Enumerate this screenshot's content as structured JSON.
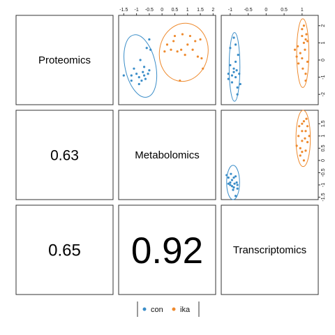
{
  "chart_data": {
    "type": "scatter",
    "variables": [
      "Proteomics",
      "Metabolomics",
      "Transcriptomics"
    ],
    "correlations": [
      {
        "row": 1,
        "col": 0,
        "value": "0.63"
      },
      {
        "row": 2,
        "col": 0,
        "value": "0.65"
      },
      {
        "row": 2,
        "col": 1,
        "value": "0.92"
      }
    ],
    "groups": [
      {
        "name": "con",
        "color": "#3A8DC8"
      },
      {
        "name": "ika",
        "color": "#EE8A2E"
      }
    ],
    "axes": {
      "Proteomics": {
        "range": [
          -2.6,
          2.6
        ],
        "ticks": [
          -2,
          -1,
          0,
          1,
          2
        ]
      },
      "Metabolomics": {
        "range": [
          -1.7,
          2.1
        ],
        "ticks": [
          -1.5,
          -1,
          -0.5,
          0,
          0.5,
          1,
          1.5,
          2
        ]
      },
      "Transcriptomics": {
        "range": [
          -1.25,
          1.45
        ],
        "ticks": [
          -1,
          -0.5,
          0,
          0.5,
          1
        ]
      },
      "Metabolomics_right": {
        "range": [
          -1.6,
          2.05
        ],
        "ticks": [
          -1.5,
          -1,
          -0.5,
          0,
          0.5,
          1,
          1.5
        ]
      }
    },
    "panels": [
      {
        "row": 0,
        "col": 1,
        "x": "Metabolomics",
        "y": "Proteomics",
        "series": [
          {
            "group": "con",
            "points": [
              [
                -1.5,
                -0.9
              ],
              [
                -1.2,
                -1.2
              ],
              [
                -1.2,
                -0.9
              ],
              [
                -1.1,
                -0.5
              ],
              [
                -1.0,
                -0.8
              ],
              [
                -0.9,
                -1.4
              ],
              [
                -0.9,
                -1.0
              ],
              [
                -0.85,
                0.0
              ],
              [
                -0.8,
                -1.2
              ],
              [
                -0.75,
                -0.7
              ],
              [
                -0.7,
                -0.9
              ],
              [
                -0.7,
                -0.4
              ],
              [
                -0.65,
                -1.1
              ],
              [
                -0.6,
                0.7
              ],
              [
                -0.55,
                -0.8
              ],
              [
                -0.5,
                1.2
              ],
              [
                -0.45,
                0.6
              ],
              [
                -0.5,
                -0.6
              ]
            ]
          },
          {
            "group": "ika",
            "points": [
              [
                0.1,
                0.5
              ],
              [
                0.2,
                0.9
              ],
              [
                0.35,
                0.6
              ],
              [
                0.45,
                1.1
              ],
              [
                0.5,
                1.4
              ],
              [
                0.6,
                0.5
              ],
              [
                0.7,
                -1.2
              ],
              [
                0.75,
                0.6
              ],
              [
                0.8,
                1.5
              ],
              [
                0.9,
                0.3
              ],
              [
                1.0,
                0.9
              ],
              [
                1.1,
                1.4
              ],
              [
                1.2,
                0.6
              ],
              [
                1.3,
                1.1
              ],
              [
                1.4,
                0.2
              ],
              [
                1.5,
                1.2
              ],
              [
                1.6,
                -0.5
              ],
              [
                1.55,
                0.1
              ]
            ]
          }
        ],
        "ellipses": [
          {
            "group": "con",
            "cx": -0.85,
            "cy": -0.35,
            "rx": 0.6,
            "ry": 1.85,
            "angle": -12
          },
          {
            "group": "ika",
            "cx": 0.85,
            "cy": 0.45,
            "rx": 0.95,
            "ry": 1.7,
            "angle": 10
          }
        ]
      },
      {
        "row": 0,
        "col": 2,
        "x": "Transcriptomics",
        "y": "Proteomics",
        "series": [
          {
            "group": "con",
            "points": [
              [
                -1.05,
                -1.1
              ],
              [
                -1.05,
                -0.8
              ],
              [
                -1.0,
                -0.3
              ],
              [
                -1.0,
                0.7
              ],
              [
                -0.95,
                -0.9
              ],
              [
                -0.95,
                -1.3
              ],
              [
                -0.9,
                -0.5
              ],
              [
                -0.9,
                -0.7
              ],
              [
                -0.85,
                0.9
              ],
              [
                -0.85,
                -0.1
              ],
              [
                -0.85,
                -1.0
              ],
              [
                -0.82,
                -0.6
              ],
              [
                -0.8,
                -2.0
              ],
              [
                -0.8,
                -1.6
              ],
              [
                -0.78,
                0.3
              ],
              [
                -0.75,
                -0.8
              ],
              [
                -0.72,
                -1.4
              ],
              [
                -0.9,
                1.3
              ]
            ]
          },
          {
            "group": "ika",
            "points": [
              [
                0.8,
                0.6
              ],
              [
                0.85,
                0.2
              ],
              [
                0.88,
                0.8
              ],
              [
                0.9,
                -0.2
              ],
              [
                0.95,
                0.4
              ],
              [
                1.0,
                1.8
              ],
              [
                1.0,
                1.4
              ],
              [
                1.0,
                0.1
              ],
              [
                1.02,
                -0.5
              ],
              [
                1.05,
                1.0
              ],
              [
                1.05,
                2.0
              ],
              [
                1.08,
                0.6
              ],
              [
                1.1,
                1.2
              ],
              [
                1.1,
                -0.8
              ],
              [
                1.1,
                -1.2
              ],
              [
                1.12,
                1.5
              ],
              [
                1.15,
                1.1
              ],
              [
                1.15,
                -0.1
              ]
            ]
          }
        ],
        "ellipses": [
          {
            "group": "con",
            "cx": -0.88,
            "cy": -0.4,
            "rx": 0.15,
            "ry": 2.0,
            "angle": 0
          },
          {
            "group": "ika",
            "cx": 1.02,
            "cy": 0.4,
            "rx": 0.17,
            "ry": 2.0,
            "angle": 0
          }
        ]
      },
      {
        "row": 1,
        "col": 2,
        "x": "Transcriptomics",
        "y": "Metabolomics_right",
        "series": [
          {
            "group": "con",
            "points": [
              [
                -1.1,
                -0.6
              ],
              [
                -1.05,
                -0.7
              ],
              [
                -1.0,
                -0.9
              ],
              [
                -1.0,
                -1.0
              ],
              [
                -0.98,
                -0.55
              ],
              [
                -0.95,
                -0.8
              ],
              [
                -0.92,
                -1.2
              ],
              [
                -0.9,
                -0.7
              ],
              [
                -0.9,
                -1.1
              ],
              [
                -0.88,
                -0.95
              ],
              [
                -0.85,
                -0.65
              ],
              [
                -0.85,
                -1.45
              ],
              [
                -0.82,
                -0.9
              ],
              [
                -0.8,
                -1.15
              ],
              [
                -0.8,
                -1.0
              ],
              [
                -1.05,
                -0.95
              ],
              [
                -0.95,
                -1.05
              ]
            ]
          },
          {
            "group": "ika",
            "points": [
              [
                0.85,
                0.6
              ],
              [
                0.9,
                1.0
              ],
              [
                0.92,
                1.4
              ],
              [
                0.95,
                0.5
              ],
              [
                0.95,
                0.2
              ],
              [
                1.0,
                1.2
              ],
              [
                1.0,
                0.8
              ],
              [
                1.0,
                0.35
              ],
              [
                1.05,
                1.6
              ],
              [
                1.05,
                0.0
              ],
              [
                1.08,
                0.9
              ],
              [
                1.1,
                1.2
              ],
              [
                1.1,
                0.4
              ],
              [
                1.12,
                1.7
              ],
              [
                1.15,
                0.75
              ],
              [
                1.15,
                1.4
              ],
              [
                1.2,
                1.0
              ],
              [
                1.0,
                1.5
              ]
            ]
          }
        ],
        "ellipses": [
          {
            "group": "con",
            "cx": -0.92,
            "cy": -0.9,
            "rx": 0.18,
            "ry": 0.7,
            "angle": 0
          },
          {
            "group": "ika",
            "cx": 1.03,
            "cy": 0.9,
            "rx": 0.2,
            "ry": 1.15,
            "angle": 0
          }
        ]
      }
    ],
    "legend": {
      "position": "bottom"
    }
  }
}
